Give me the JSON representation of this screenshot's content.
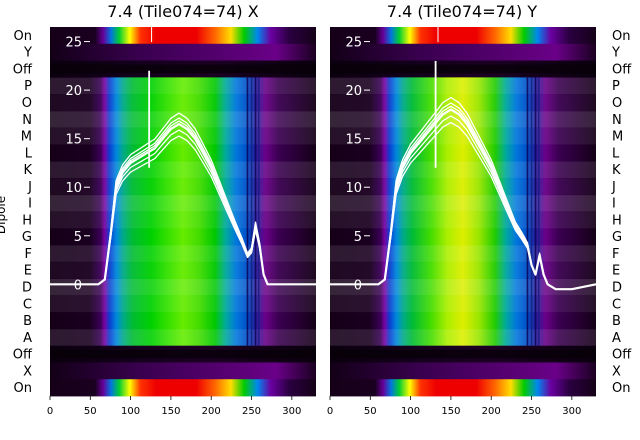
{
  "chart_data": [
    {
      "type": "heatmap",
      "title": "7.4 (Tile074=74) X",
      "ylabel": "Dipole",
      "xlim": [
        0,
        330
      ],
      "xticks": [
        0,
        50,
        100,
        150,
        200,
        250,
        300
      ],
      "row_labels": [
        "On",
        "Y",
        "Off",
        "P",
        "O",
        "N",
        "M",
        "L",
        "K",
        "J",
        "I",
        "H",
        "G",
        "F",
        "E",
        "D",
        "C",
        "B",
        "A",
        "Off",
        "X",
        "On"
      ],
      "overlay_yticks": [
        0,
        5,
        10,
        15,
        20,
        25
      ],
      "overlay_ylim": [
        -11.5,
        26.5
      ],
      "colormap": "nipy_spectral",
      "line_series": {
        "x": [
          0,
          60,
          68,
          75,
          82,
          90,
          100,
          110,
          120,
          130,
          140,
          150,
          160,
          170,
          180,
          190,
          200,
          210,
          220,
          230,
          238,
          245,
          250,
          255,
          260,
          265,
          270,
          280,
          300,
          330
        ],
        "y": [
          0,
          0,
          0.5,
          5,
          10,
          11.5,
          12.5,
          13,
          13.5,
          14,
          15,
          16,
          16.5,
          16,
          15,
          13.5,
          12,
          10,
          8,
          6,
          4.5,
          3,
          3.5,
          6,
          4,
          1,
          0,
          0,
          0,
          0
        ]
      },
      "spike": {
        "x": 123,
        "y": 22
      }
    },
    {
      "type": "heatmap",
      "title": "7.4 (Tile074=74) Y",
      "xlim": [
        0,
        330
      ],
      "xticks": [
        0,
        50,
        100,
        150,
        200,
        250,
        300
      ],
      "row_labels": [
        "On",
        "Y",
        "Off",
        "P",
        "O",
        "N",
        "M",
        "L",
        "K",
        "J",
        "I",
        "H",
        "G",
        "F",
        "E",
        "D",
        "C",
        "B",
        "A",
        "Off",
        "X",
        "On"
      ],
      "overlay_yticks": [
        0,
        5,
        10,
        15,
        20,
        25
      ],
      "overlay_ylim": [
        -11.5,
        26.5
      ],
      "colormap": "nipy_spectral",
      "line_series": {
        "x": [
          0,
          60,
          68,
          75,
          82,
          90,
          100,
          110,
          120,
          130,
          140,
          150,
          160,
          170,
          180,
          190,
          200,
          210,
          220,
          230,
          238,
          245,
          250,
          255,
          260,
          265,
          270,
          280,
          300,
          330
        ],
        "y": [
          0,
          0,
          0.5,
          5,
          10,
          12,
          13.5,
          14.5,
          15.5,
          16.5,
          17.5,
          18,
          17.5,
          16.5,
          15,
          13.5,
          12,
          10,
          8,
          6,
          5,
          4,
          2,
          1,
          3,
          1,
          0,
          -0.5,
          -0.5,
          0
        ]
      },
      "spike": {
        "x": 131,
        "y": 23
      }
    }
  ]
}
